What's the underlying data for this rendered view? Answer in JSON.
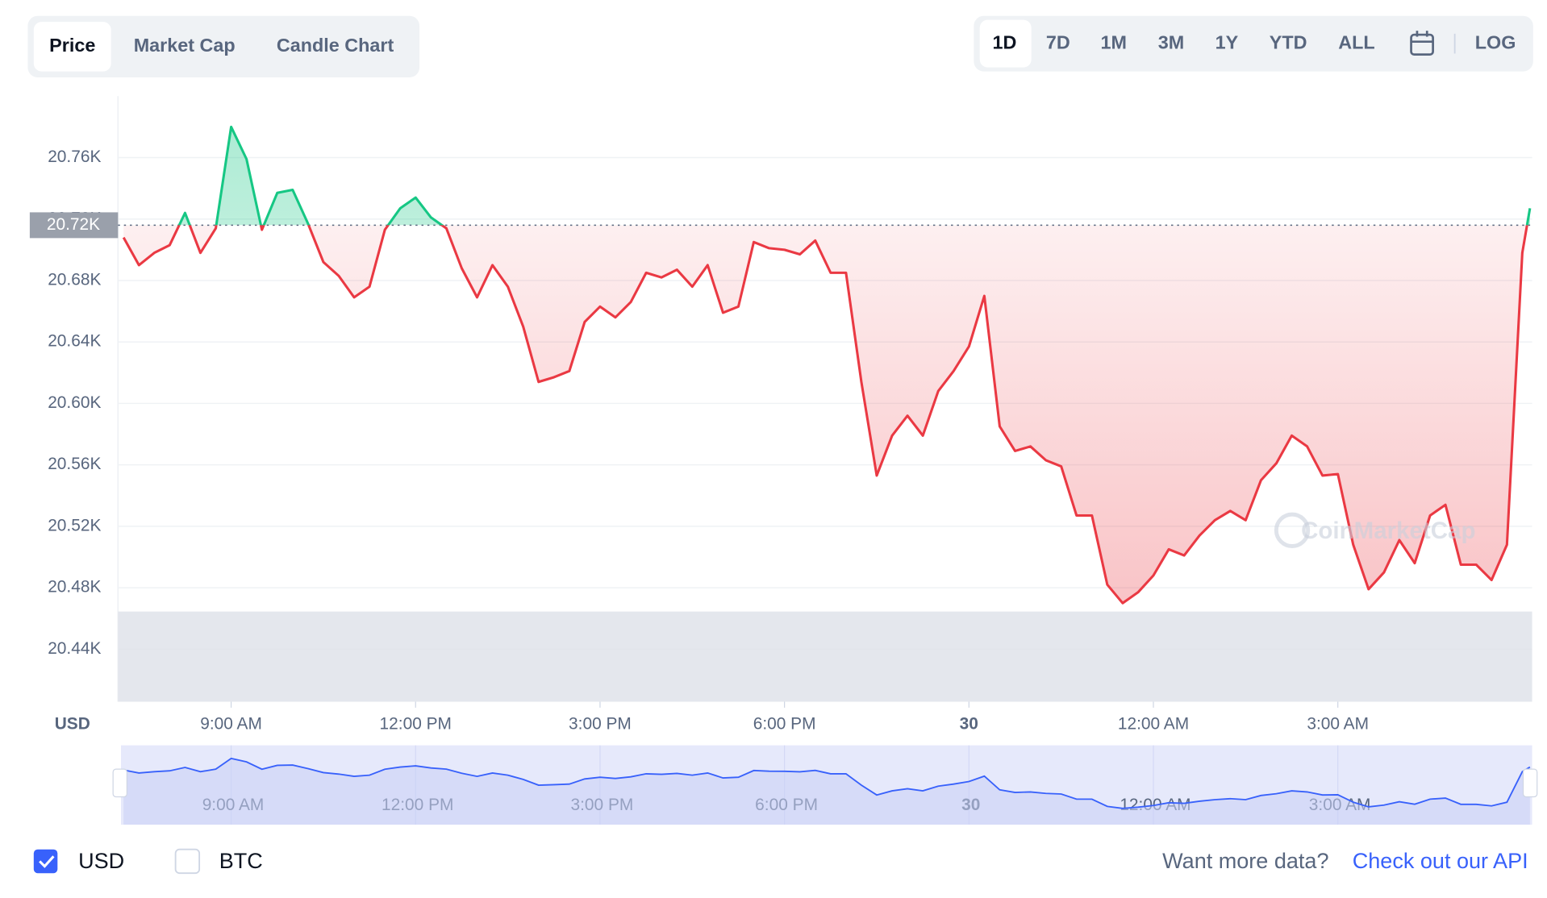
{
  "chart_data": {
    "type": "line",
    "tabs": [
      "Price",
      "Market Cap",
      "Candle Chart"
    ],
    "ranges": [
      "1D",
      "7D",
      "1M",
      "3M",
      "1Y",
      "YTD",
      "ALL"
    ],
    "scale_button": "LOG",
    "log_scale": false,
    "y_axis_label": "USD",
    "currencies": [
      "USD",
      "BTC"
    ],
    "footer_text": "Want more data?",
    "footer_link": "Check out our API",
    "watermark": "CoinMarketCap",
    "grid": true,
    "reference_line": {
      "value": 20716,
      "label": "20.72K"
    },
    "xlim": [
      7.16,
      30.16
    ],
    "xticks": [
      {
        "value": 9,
        "label": "9:00 AM"
      },
      {
        "value": 12,
        "label": "12:00 PM"
      },
      {
        "value": 15,
        "label": "3:00 PM"
      },
      {
        "value": 18,
        "label": "6:00 PM"
      },
      {
        "value": 21,
        "label": "30"
      },
      {
        "value": 24,
        "label": "12:00 AM"
      },
      {
        "value": 27,
        "label": "3:00 AM"
      }
    ],
    "ylim": [
      20405.8,
      20800
    ],
    "yticks": [
      {
        "value": 20440,
        "label": "20.44K"
      },
      {
        "value": 20480,
        "label": "20.48K"
      },
      {
        "value": 20520,
        "label": "20.52K"
      },
      {
        "value": 20560,
        "label": "20.56K"
      },
      {
        "value": 20600,
        "label": "20.60K"
      },
      {
        "value": 20640,
        "label": "20.64K"
      },
      {
        "value": 20680,
        "label": "20.68K"
      },
      {
        "value": 20720,
        "label": "20.72K"
      },
      {
        "value": 20760,
        "label": "20.76K"
      }
    ],
    "up_color": "#16c784",
    "down_color": "#ea3943",
    "x": [
      7.25,
      7.5,
      7.75,
      8,
      8.25,
      8.5,
      8.75,
      9,
      9.25,
      9.5,
      9.75,
      10,
      10.25,
      10.5,
      10.75,
      11,
      11.25,
      11.5,
      11.75,
      12,
      12.25,
      12.5,
      12.75,
      13,
      13.25,
      13.5,
      13.75,
      14,
      14.25,
      14.5,
      14.75,
      15,
      15.25,
      15.5,
      15.75,
      16,
      16.25,
      16.5,
      16.75,
      17,
      17.25,
      17.5,
      17.75,
      18,
      18.25,
      18.5,
      18.75,
      19,
      19.25,
      19.5,
      19.75,
      20,
      20.25,
      20.5,
      20.75,
      21,
      21.25,
      21.5,
      21.75,
      22,
      22.25,
      22.5,
      22.75,
      23,
      23.25,
      23.5,
      23.75,
      24,
      24.25,
      24.5,
      24.75,
      25,
      25.25,
      25.5,
      25.75,
      26,
      26.25,
      26.5,
      26.75,
      27,
      27.25,
      27.5,
      27.75,
      28,
      28.25,
      28.5,
      28.75,
      29,
      29.25,
      29.5,
      29.75,
      30,
      30.125
    ],
    "values": [
      20708,
      20690,
      20698,
      20703,
      20724,
      20698,
      20714,
      20780,
      20759,
      20713,
      20737,
      20739,
      20717,
      20692,
      20683,
      20669,
      20676,
      20713,
      20727,
      20734,
      20721,
      20714,
      20688,
      20669,
      20690,
      20676,
      20650,
      20614,
      20617,
      20621,
      20653,
      20663,
      20656,
      20666,
      20685,
      20682,
      20687,
      20676,
      20690,
      20659,
      20663,
      20705,
      20701,
      20700,
      20697,
      20706,
      20685,
      20685,
      20614,
      20553,
      20579,
      20592,
      20579,
      20608,
      20621,
      20637,
      20670,
      20585,
      20569,
      20572,
      20563,
      20559,
      20527,
      20527,
      20482,
      20470,
      20477,
      20488,
      20505,
      20501,
      20514,
      20524,
      20530,
      20524,
      20550,
      20561,
      20579,
      20572,
      20553,
      20554,
      20508,
      20479,
      20490,
      20511,
      20496,
      20527,
      20534,
      20495,
      20495,
      20485,
      20508,
      20698,
      20727
    ]
  }
}
